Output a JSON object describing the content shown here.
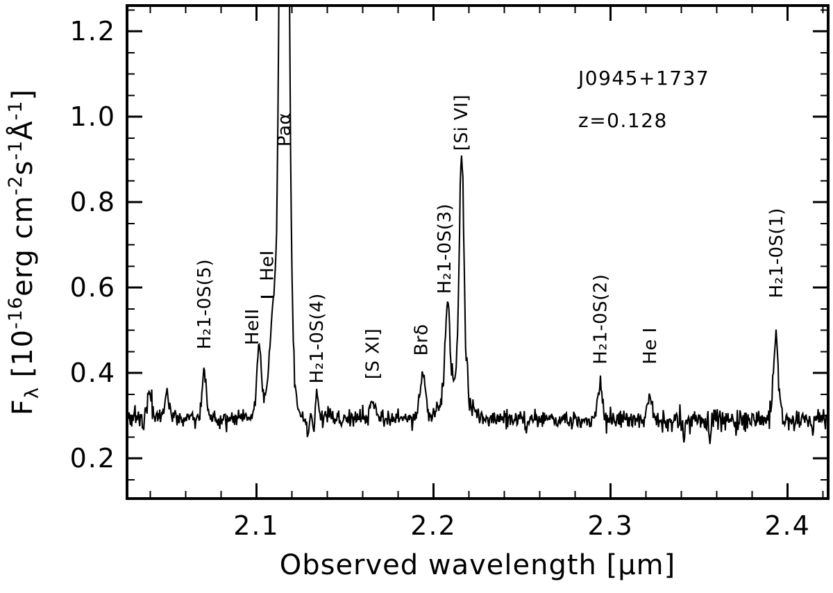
{
  "chart_data": {
    "type": "line",
    "title": "",
    "xlabel": "Observed wavelength [μm]",
    "ylabel": "Fλ [10⁻¹⁶erg cm⁻²s⁻¹Å⁻¹]",
    "ylabel_parts": [
      {
        "t": "F"
      },
      {
        "t": "λ",
        "style": "sub"
      },
      {
        "t": " [10"
      },
      {
        "t": "-16",
        "style": "sup"
      },
      {
        "t": "erg cm"
      },
      {
        "t": "-2",
        "style": "sup"
      },
      {
        "t": "s"
      },
      {
        "t": "-1",
        "style": "sup"
      },
      {
        "t": "Å"
      },
      {
        "t": "-1",
        "style": "sup"
      },
      {
        "t": "]"
      }
    ],
    "xlim": [
      2.0269,
      2.4229
    ],
    "ylim": [
      0.1057,
      1.2602
    ],
    "xticks": [
      2.1,
      2.2,
      2.3,
      2.4
    ],
    "xtick_labels": [
      "2.1",
      "2.2",
      "2.3",
      "2.4"
    ],
    "yticks": [
      0.2,
      0.4,
      0.6,
      0.8,
      1.0,
      1.2
    ],
    "ytick_labels": [
      "0.2",
      "0.4",
      "0.6",
      "0.8",
      "1.0",
      "1.2"
    ],
    "x_minor_step": 0.02,
    "y_minor_step": 0.05,
    "grid": false,
    "legend": false,
    "annotations": {
      "object": "J0945+1737",
      "redshift": "z=0.128"
    },
    "continuum_level": 0.296,
    "continuum_slope": -0.02,
    "noise_sigma": 0.0105,
    "emission_lines": [
      {
        "label": "H₂1-0S(5)",
        "wavelength": 2.0705,
        "amplitude": 0.115,
        "sigma": 0.0012,
        "label_y": 0.455
      },
      {
        "label": "HeII",
        "wavelength": 2.1015,
        "amplitude": 0.165,
        "sigma": 0.0012,
        "label_y": 0.465,
        "label_wavelength": 2.0975
      },
      {
        "label": "HeI",
        "wavelength": 2.1095,
        "amplitude": 0.125,
        "sigma": 0.0016,
        "label_y": 0.615,
        "label_wavelength": 2.106,
        "dash_y": 0.578
      },
      {
        "label": "Paα",
        "wavelength": 2.1157,
        "amplitude": 2.6,
        "sigma": 0.0019,
        "label_y": 0.93,
        "label_wavelength": 2.1155
      },
      {
        "label": "H₂1-0S(4)",
        "wavelength": 2.134,
        "amplitude": 0.05,
        "sigma": 0.0012,
        "label_y": 0.375
      },
      {
        "label": "[S XI]",
        "wavelength": 2.1655,
        "amplitude": 0.045,
        "sigma": 0.0015,
        "label_y": 0.385
      },
      {
        "label": "Brδ",
        "wavelength": 2.194,
        "amplitude": 0.105,
        "sigma": 0.0015,
        "label_y": 0.44,
        "label_wavelength": 2.193
      },
      {
        "label": "H₂1-0S(3)",
        "wavelength": 2.2078,
        "amplitude": 0.2,
        "sigma": 0.0013,
        "label_y": 0.585,
        "label_wavelength": 2.206
      },
      {
        "label": "[Si VI]",
        "wavelength": 2.2159,
        "amplitude": 0.55,
        "sigma": 0.0013,
        "label_y": 0.92,
        "label_wavelength": 2.2155
      },
      {
        "label": "H₂1-0S(2)",
        "wavelength": 2.2941,
        "amplitude": 0.08,
        "sigma": 0.0013,
        "label_y": 0.42
      },
      {
        "label": "He I",
        "wavelength": 2.3222,
        "amplitude": 0.065,
        "sigma": 0.0013,
        "label_y": 0.42
      },
      {
        "label": "H₂1-0S(1)",
        "wavelength": 2.3934,
        "amplitude": 0.19,
        "sigma": 0.0014,
        "label_y": 0.575
      }
    ],
    "unlabeled_features": [
      {
        "wavelength": 2.0395,
        "amplitude": 0.075,
        "sigma": 0.001
      },
      {
        "wavelength": 2.0495,
        "amplitude": 0.07,
        "sigma": 0.001
      },
      {
        "wavelength": 2.108,
        "amplitude": 0.07,
        "sigma": 0.003
      },
      {
        "wavelength": 2.1157,
        "amplitude": 0.3,
        "sigma": 0.0038
      },
      {
        "wavelength": 2.212,
        "amplitude": 0.09,
        "sigma": 0.006
      }
    ],
    "noise_spikes": [
      {
        "wavelength": 2.129,
        "amplitude": -0.045
      },
      {
        "wavelength": 2.1325,
        "amplitude": -0.045
      },
      {
        "wavelength": 2.219,
        "amplitude": 0.06
      },
      {
        "wavelength": 2.2525,
        "amplitude": -0.035
      },
      {
        "wavelength": 2.3415,
        "amplitude": -0.035
      },
      {
        "wavelength": 2.356,
        "amplitude": -0.045
      },
      {
        "wavelength": 2.371,
        "amplitude": -0.04
      },
      {
        "wavelength": 2.414,
        "amplitude": -0.035
      }
    ]
  }
}
